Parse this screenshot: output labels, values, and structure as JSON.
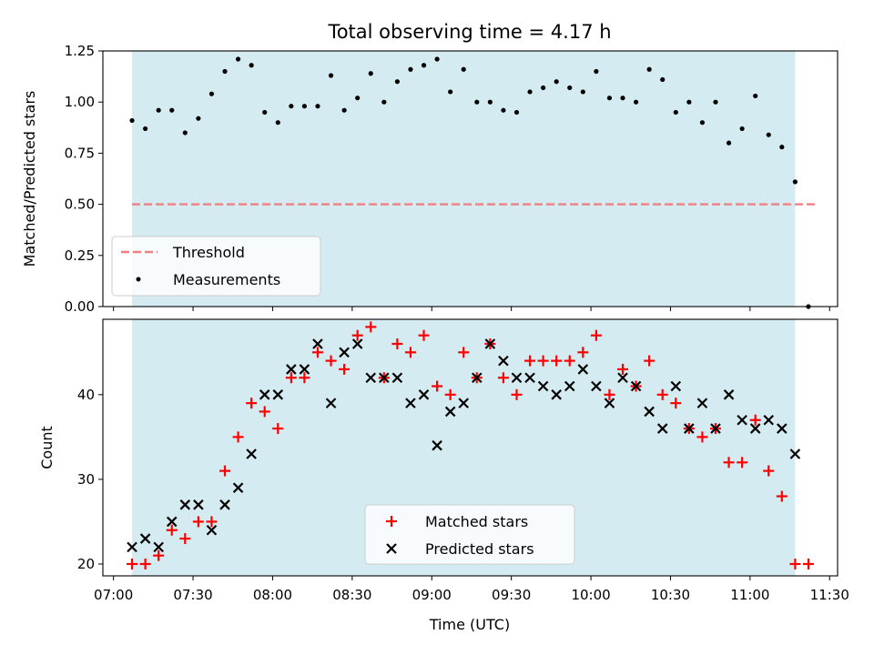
{
  "title": "Total observing time = 4.17 h",
  "chart_data": [
    {
      "type": "scatter",
      "panel": "top",
      "ylabel": "Matched/Predicted stars",
      "ylim": [
        0,
        1.25
      ],
      "yticks": [
        "0.00",
        "0.25",
        "0.50",
        "0.75",
        "1.00",
        "1.25"
      ],
      "x_range": [
        "06:56",
        "11:33"
      ],
      "shaded_range": [
        "07:07",
        "11:17"
      ],
      "threshold": {
        "name": "Threshold",
        "value": 0.5,
        "color": "#f08080",
        "x_range": [
          "07:07",
          "11:25"
        ]
      },
      "series": [
        {
          "name": "Measurements",
          "color": "#000000",
          "x": [
            "07:07",
            "07:12",
            "07:17",
            "07:22",
            "07:27",
            "07:32",
            "07:37",
            "07:42",
            "07:47",
            "07:52",
            "07:57",
            "08:02",
            "08:07",
            "08:12",
            "08:17",
            "08:22",
            "08:27",
            "08:32",
            "08:37",
            "08:42",
            "08:47",
            "08:52",
            "08:57",
            "09:02",
            "09:07",
            "09:12",
            "09:17",
            "09:22",
            "09:27",
            "09:32",
            "09:37",
            "09:42",
            "09:47",
            "09:52",
            "09:57",
            "10:02",
            "10:07",
            "10:12",
            "10:17",
            "10:22",
            "10:27",
            "10:32",
            "10:37",
            "10:42",
            "10:47",
            "10:52",
            "10:57",
            "11:02",
            "11:07",
            "11:12",
            "11:17",
            "11:22"
          ],
          "values": [
            0.91,
            0.87,
            0.96,
            0.96,
            0.85,
            0.92,
            1.04,
            1.15,
            1.21,
            1.18,
            0.95,
            0.9,
            0.98,
            0.98,
            0.98,
            1.13,
            0.96,
            1.02,
            1.14,
            1.0,
            1.1,
            1.16,
            1.18,
            1.21,
            1.05,
            1.16,
            1.0,
            1.0,
            0.96,
            0.95,
            1.05,
            1.07,
            1.1,
            1.07,
            1.05,
            1.15,
            1.02,
            1.02,
            1.0,
            1.16,
            1.11,
            0.95,
            1.0,
            0.9,
            1.0,
            0.8,
            0.87,
            1.03,
            0.84,
            0.78,
            0.61,
            0.0
          ]
        }
      ],
      "legend_loc": "lower-left"
    },
    {
      "type": "scatter",
      "panel": "bottom",
      "xlabel": "Time (UTC)",
      "ylabel": "Count",
      "ylim": [
        18.6,
        48.9
      ],
      "yticks": [
        "20",
        "30",
        "40"
      ],
      "xticks": [
        "07:00",
        "07:30",
        "08:00",
        "08:30",
        "09:00",
        "09:30",
        "10:00",
        "10:30",
        "11:00",
        "11:30"
      ],
      "x_range": [
        "06:56",
        "11:33"
      ],
      "shaded_range": [
        "07:07",
        "11:17"
      ],
      "series": [
        {
          "name": "Matched stars",
          "marker": "plus",
          "color": "#ff0000",
          "x": [
            "07:07",
            "07:12",
            "07:17",
            "07:22",
            "07:27",
            "07:32",
            "07:37",
            "07:42",
            "07:47",
            "07:52",
            "07:57",
            "08:02",
            "08:07",
            "08:12",
            "08:17",
            "08:22",
            "08:27",
            "08:32",
            "08:37",
            "08:42",
            "08:47",
            "08:52",
            "08:57",
            "09:02",
            "09:07",
            "09:12",
            "09:17",
            "09:22",
            "09:27",
            "09:32",
            "09:37",
            "09:42",
            "09:47",
            "09:52",
            "09:57",
            "10:02",
            "10:07",
            "10:12",
            "10:17",
            "10:22",
            "10:27",
            "10:32",
            "10:37",
            "10:42",
            "10:47",
            "10:52",
            "10:57",
            "11:02",
            "11:07",
            "11:12",
            "11:17",
            "11:22"
          ],
          "values": [
            20,
            20,
            21,
            24,
            23,
            25,
            25,
            31,
            35,
            39,
            38,
            36,
            42,
            42,
            45,
            44,
            43,
            47,
            48,
            42,
            46,
            45,
            47,
            41,
            40,
            45,
            42,
            46,
            42,
            40,
            44,
            44,
            44,
            44,
            45,
            47,
            40,
            43,
            41,
            44,
            40,
            39,
            36,
            35,
            36,
            32,
            32,
            37,
            31,
            28,
            20,
            20
          ]
        },
        {
          "name": "Predicted stars",
          "marker": "x",
          "color": "#000000",
          "x": [
            "07:07",
            "07:12",
            "07:17",
            "07:22",
            "07:27",
            "07:32",
            "07:37",
            "07:42",
            "07:47",
            "07:52",
            "07:57",
            "08:02",
            "08:07",
            "08:12",
            "08:17",
            "08:22",
            "08:27",
            "08:32",
            "08:37",
            "08:42",
            "08:47",
            "08:52",
            "08:57",
            "09:02",
            "09:07",
            "09:12",
            "09:17",
            "09:22",
            "09:27",
            "09:32",
            "09:37",
            "09:42",
            "09:47",
            "09:52",
            "09:57",
            "10:02",
            "10:07",
            "10:12",
            "10:17",
            "10:22",
            "10:27",
            "10:32",
            "10:37",
            "10:42",
            "10:47",
            "10:52",
            "10:57",
            "11:02",
            "11:07",
            "11:12",
            "11:17"
          ],
          "values": [
            22,
            23,
            22,
            25,
            27,
            27,
            24,
            27,
            29,
            33,
            40,
            40,
            43,
            43,
            46,
            39,
            45,
            46,
            42,
            42,
            42,
            39,
            40,
            34,
            38,
            39,
            42,
            46,
            44,
            42,
            42,
            41,
            40,
            41,
            43,
            41,
            39,
            42,
            41,
            38,
            36,
            41,
            36,
            39,
            36,
            40,
            37,
            36,
            37,
            36,
            33
          ]
        }
      ],
      "legend_loc": "lower-center"
    }
  ]
}
